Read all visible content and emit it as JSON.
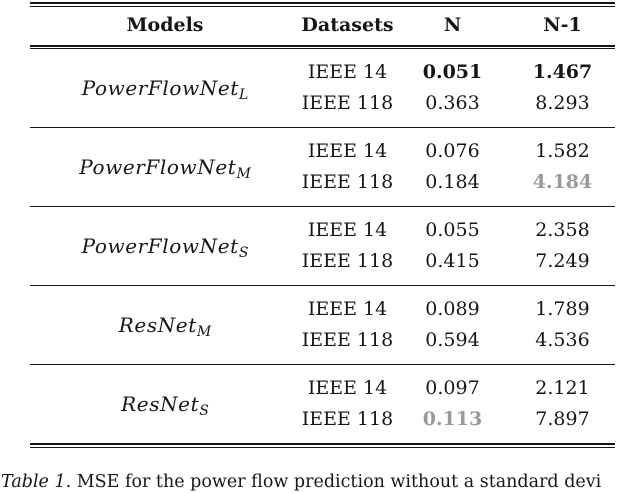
{
  "colors": {
    "text": "#161616",
    "muted_value": "#9a9a9a",
    "rule": "#161616",
    "background": "#ffffff"
  },
  "table": {
    "headers": {
      "models": "Models",
      "datasets": "Datasets",
      "n": "N",
      "n1": "N-1"
    },
    "groups": [
      {
        "model": "PowerFlowNet",
        "subscript": "L",
        "rows": [
          {
            "dataset": "IEEE 14",
            "n": "0.051",
            "n1": "1.467"
          },
          {
            "dataset": "IEEE 118",
            "n": "0.363",
            "n1": "8.293"
          }
        ]
      },
      {
        "model": "PowerFlowNet",
        "subscript": "M",
        "rows": [
          {
            "dataset": "IEEE 14",
            "n": "0.076",
            "n1": "1.582"
          },
          {
            "dataset": "IEEE 118",
            "n": "0.184",
            "n1": "4.184"
          }
        ]
      },
      {
        "model": "PowerFlowNet",
        "subscript": "S",
        "rows": [
          {
            "dataset": "IEEE 14",
            "n": "0.055",
            "n1": "2.358"
          },
          {
            "dataset": "IEEE 118",
            "n": "0.415",
            "n1": "7.249"
          }
        ]
      },
      {
        "model": "ResNet",
        "subscript": "M",
        "rows": [
          {
            "dataset": "IEEE 14",
            "n": "0.089",
            "n1": "1.789"
          },
          {
            "dataset": "IEEE 118",
            "n": "0.594",
            "n1": "4.536"
          }
        ]
      },
      {
        "model": "ResNet",
        "subscript": "S",
        "rows": [
          {
            "dataset": "IEEE 14",
            "n": "0.097",
            "n1": "2.121"
          },
          {
            "dataset": "IEEE 118",
            "n": "0.113",
            "n1": "7.897"
          }
        ]
      }
    ],
    "emphasis_note": "bold black = best, bold gray = highlighted secondary"
  },
  "caption": {
    "label": "Table 1.",
    "text": "MSE for the power flow prediction without a standard devi"
  }
}
